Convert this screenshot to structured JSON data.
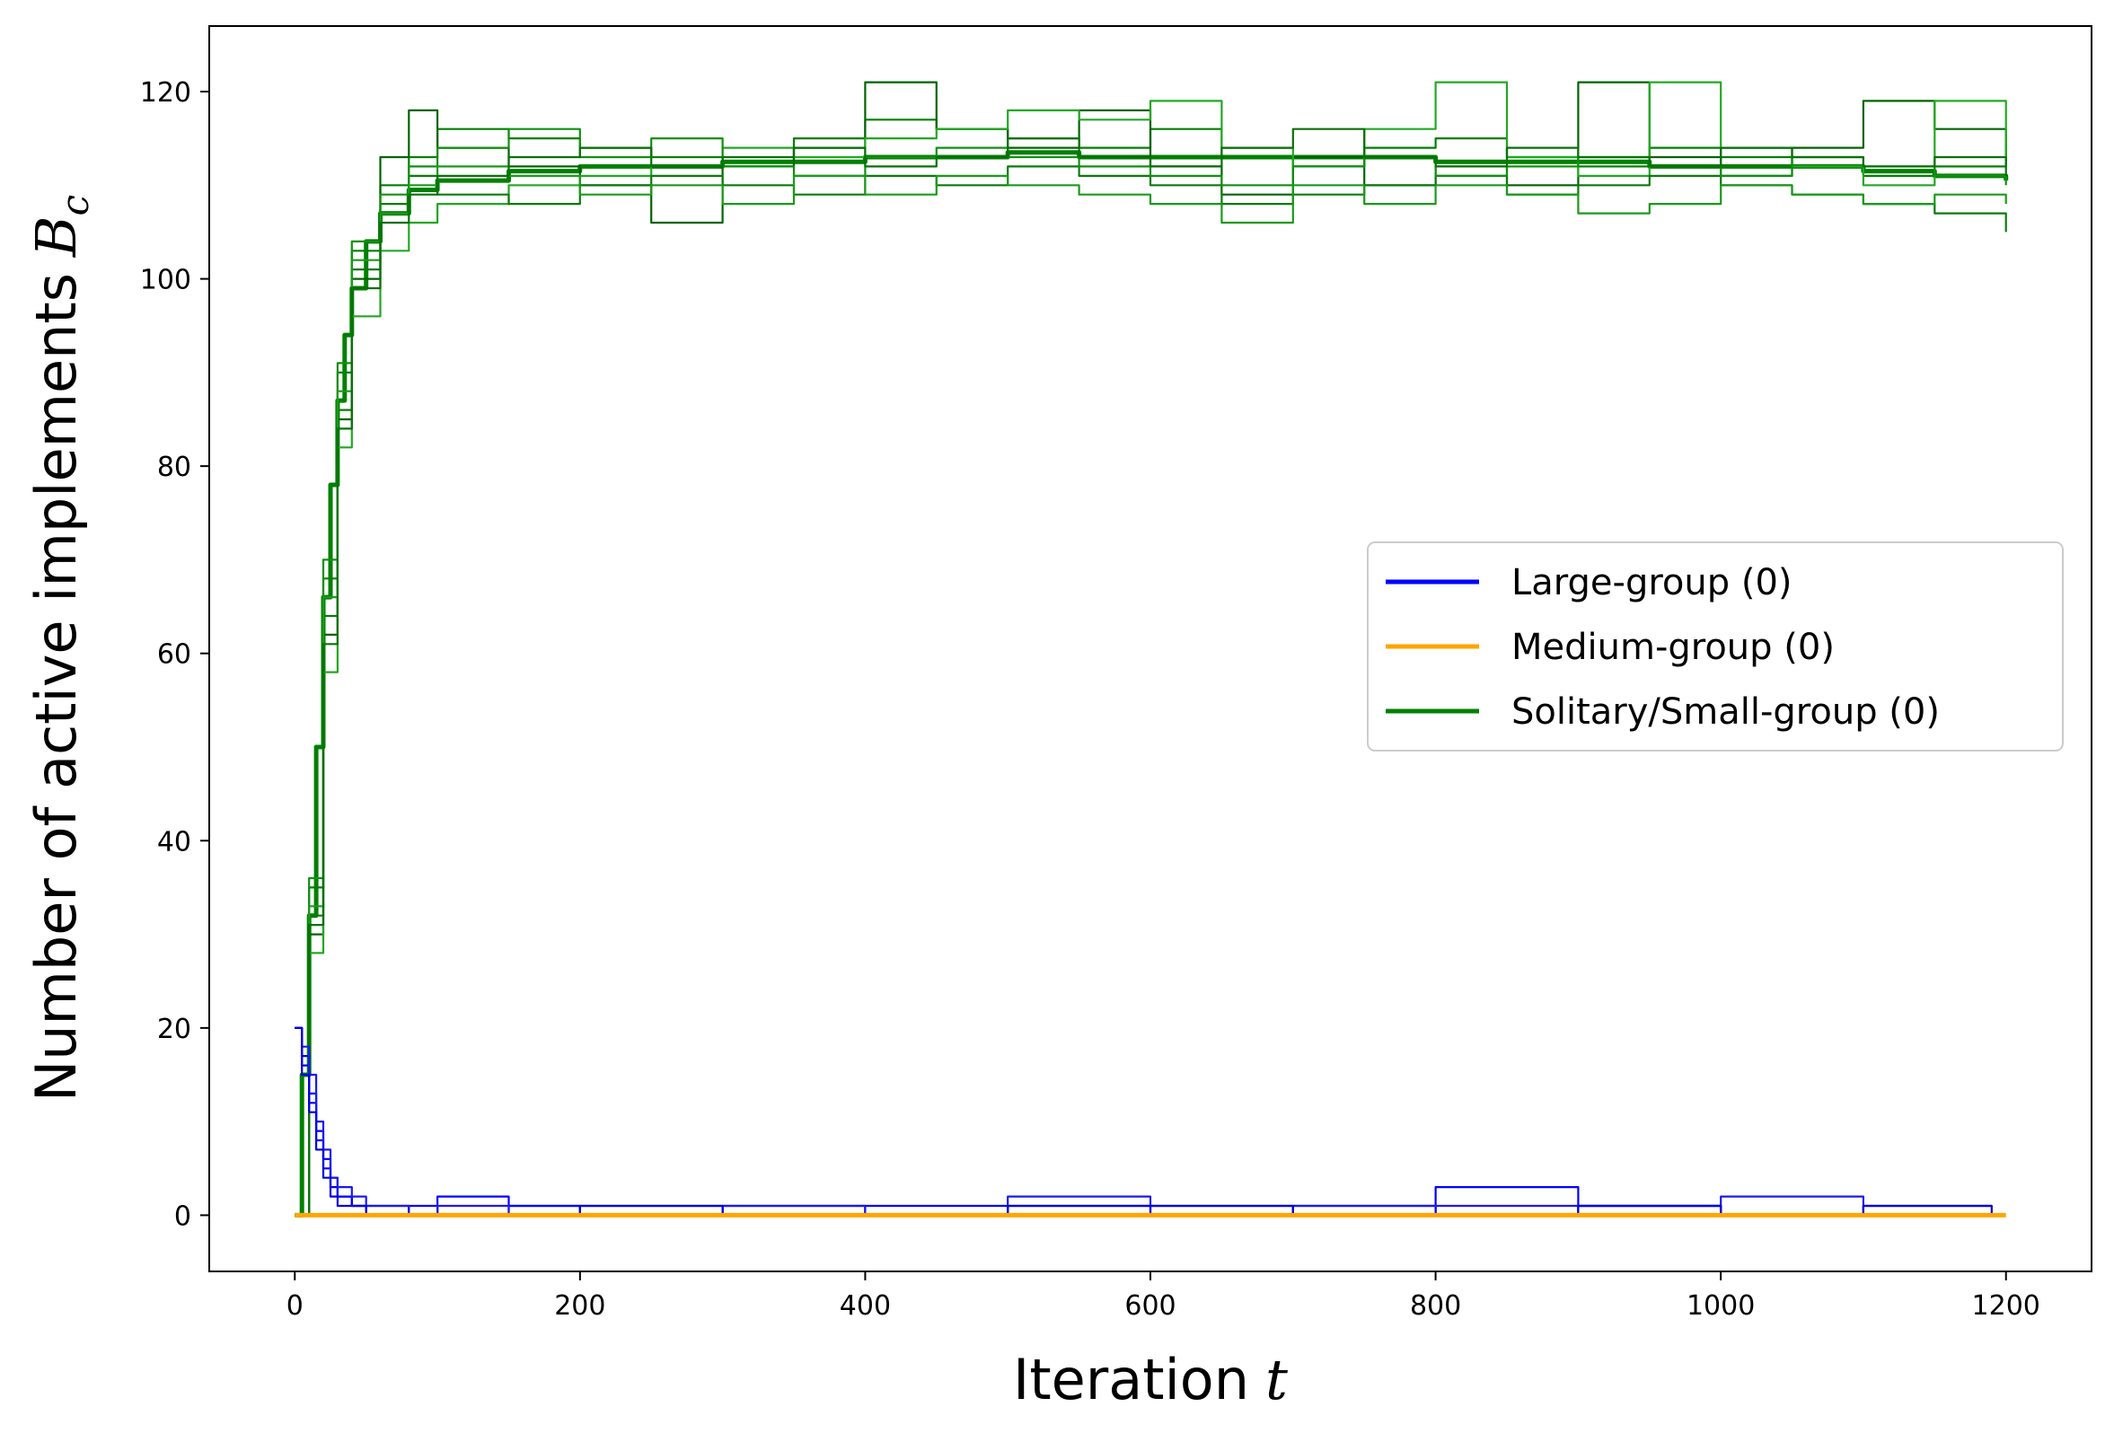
{
  "chart_data": {
    "type": "line",
    "xlabel": "Iteration",
    "xlabel_var": "t",
    "ylabel": "Number of active implements",
    "ylabel_var": "B",
    "ylabel_sub": "c",
    "xlim": [
      -60,
      1260
    ],
    "ylim": [
      -6,
      127
    ],
    "xticks": [
      0,
      200,
      400,
      600,
      800,
      1000,
      1200
    ],
    "yticks": [
      0,
      20,
      40,
      60,
      80,
      100,
      120
    ],
    "grid": false,
    "legend_position": "center-right",
    "legend": [
      {
        "label": "Large-group (0)",
        "color": "#0000ff"
      },
      {
        "label": "Medium-group (0)",
        "color": "#ffa500"
      },
      {
        "label": "Solitary/Small-group (0)",
        "color": "#008000"
      }
    ],
    "series": [
      {
        "group": "Solitary/Small-group",
        "color": "#008000",
        "style": "mean",
        "x": [
          0,
          5,
          10,
          15,
          20,
          25,
          30,
          35,
          40,
          50,
          60,
          80,
          100,
          150,
          200,
          250,
          300,
          350,
          400,
          450,
          500,
          550,
          600,
          650,
          700,
          750,
          800,
          850,
          900,
          950,
          1000,
          1050,
          1100,
          1150,
          1200
        ],
        "y": [
          0,
          15,
          32,
          50,
          66,
          78,
          87,
          94,
          99,
          104,
          107,
          109.5,
          110.5,
          111.5,
          112,
          112,
          112.5,
          112.5,
          113,
          113,
          113.5,
          113,
          113,
          113,
          113,
          113,
          112.5,
          112.5,
          112.5,
          112,
          112,
          112,
          111.5,
          111,
          110.5
        ]
      },
      {
        "group": "Solitary/Small-group",
        "color": "#008000",
        "style": "run",
        "x": [
          0,
          10,
          20,
          30,
          40,
          60,
          80,
          100,
          150,
          200,
          250,
          300,
          350,
          400,
          450,
          500,
          550,
          600,
          650,
          700,
          750,
          800,
          850,
          900,
          950,
          1000,
          1050,
          1100,
          1150,
          1200
        ],
        "y": [
          0,
          35,
          68,
          90,
          103,
          110,
          113,
          116,
          115,
          114,
          113,
          112,
          115,
          117,
          116,
          115,
          114,
          116,
          113,
          112,
          114,
          115,
          113,
          112,
          114,
          113,
          112,
          111,
          112,
          115
        ]
      },
      {
        "group": "Solitary/Small-group",
        "color": "#006400",
        "style": "run",
        "x": [
          0,
          10,
          20,
          30,
          40,
          60,
          80,
          100,
          150,
          200,
          250,
          300,
          350,
          400,
          450,
          500,
          550,
          600,
          650,
          700,
          750,
          800,
          850,
          900,
          950,
          1000,
          1050,
          1100,
          1150,
          1200
        ],
        "y": [
          0,
          30,
          62,
          85,
          100,
          113,
          118,
          114,
          112,
          110,
          106,
          112,
          114,
          121,
          116,
          114,
          118,
          112,
          109,
          113,
          110,
          112,
          110,
          121,
          113,
          111,
          114,
          119,
          116,
          112
        ]
      },
      {
        "group": "Solitary/Small-group",
        "color": "#22a822",
        "style": "run",
        "x": [
          0,
          10,
          20,
          30,
          40,
          60,
          80,
          100,
          150,
          200,
          250,
          300,
          350,
          400,
          450,
          500,
          550,
          600,
          650,
          700,
          750,
          800,
          850,
          900,
          950,
          1000,
          1050,
          1100,
          1150,
          1200
        ],
        "y": [
          0,
          28,
          58,
          82,
          96,
          103,
          106,
          108,
          110,
          111,
          112,
          114,
          113,
          115,
          116,
          118,
          117,
          119,
          114,
          112,
          116,
          121,
          113,
          111,
          121,
          114,
          112,
          110,
          119,
          112
        ]
      },
      {
        "group": "Solitary/Small-group",
        "color": "#0b7a0b",
        "style": "run",
        "x": [
          0,
          10,
          20,
          30,
          40,
          60,
          80,
          100,
          150,
          200,
          250,
          300,
          350,
          400,
          450,
          500,
          550,
          600,
          650,
          700,
          750,
          800,
          850,
          900,
          950,
          1000,
          1050,
          1100,
          1150,
          1200
        ],
        "y": [
          0,
          32,
          64,
          86,
          101,
          108,
          111,
          109,
          108,
          110,
          111,
          110,
          109,
          111,
          110,
          112,
          111,
          110,
          108,
          109,
          110,
          111,
          109,
          110,
          111,
          110,
          109,
          108,
          107,
          105
        ]
      },
      {
        "group": "Solitary/Small-group",
        "color": "#109010",
        "style": "run",
        "x": [
          0,
          10,
          20,
          30,
          40,
          60,
          80,
          100,
          150,
          200,
          250,
          300,
          350,
          400,
          450,
          500,
          550,
          600,
          650,
          700,
          750,
          800,
          850,
          900,
          950,
          1000,
          1050,
          1100,
          1150,
          1200
        ],
        "y": [
          0,
          36,
          70,
          91,
          104,
          109,
          112,
          114,
          116,
          113,
          115,
          112,
          111,
          113,
          114,
          113,
          112,
          111,
          110,
          112,
          113,
          111,
          112,
          113,
          112,
          111,
          113,
          112,
          111,
          110
        ]
      },
      {
        "group": "Solitary/Small-group",
        "color": "#1a9a1a",
        "style": "run",
        "x": [
          0,
          10,
          20,
          30,
          40,
          60,
          80,
          100,
          150,
          200,
          250,
          300,
          350,
          400,
          450,
          500,
          550,
          600,
          650,
          700,
          750,
          800,
          850,
          900,
          950,
          1000,
          1050,
          1100,
          1150,
          1200
        ],
        "y": [
          0,
          33,
          66,
          88,
          102,
          107,
          110,
          112,
          111,
          109,
          110,
          108,
          111,
          109,
          111,
          110,
          109,
          108,
          106,
          110,
          108,
          110,
          109,
          107,
          108,
          110,
          109,
          108,
          109,
          108
        ]
      },
      {
        "group": "Solitary/Small-group",
        "color": "#087008",
        "style": "run",
        "x": [
          0,
          10,
          20,
          30,
          40,
          60,
          80,
          100,
          150,
          200,
          250,
          300,
          350,
          400,
          450,
          500,
          550,
          600,
          650,
          700,
          750,
          800,
          850,
          900,
          950,
          1000,
          1050,
          1100,
          1150,
          1200
        ],
        "y": [
          0,
          31,
          61,
          84,
          99,
          106,
          109,
          111,
          113,
          114,
          112,
          113,
          114,
          112,
          113,
          115,
          113,
          112,
          114,
          116,
          113,
          112,
          114,
          113,
          112,
          114,
          113,
          112,
          113,
          111
        ]
      },
      {
        "group": "Large-group",
        "color": "#0000ff",
        "style": "run",
        "x": [
          0,
          5,
          10,
          15,
          20,
          25,
          30,
          40,
          50,
          80,
          100,
          150,
          200,
          300,
          400,
          500,
          600,
          700,
          800,
          900,
          1000,
          1100,
          1190
        ],
        "y": [
          20,
          17,
          12,
          8,
          5,
          3,
          2,
          1,
          1,
          0,
          2,
          1,
          0,
          1,
          0,
          1,
          0,
          1,
          0,
          1,
          0,
          1,
          1
        ]
      },
      {
        "group": "Large-group",
        "color": "#0000ff",
        "style": "run",
        "x": [
          0,
          5,
          10,
          15,
          20,
          25,
          30,
          40,
          50,
          80,
          100,
          150,
          200,
          300,
          400,
          500,
          600,
          700,
          800,
          900,
          1000,
          1100,
          1190
        ],
        "y": [
          20,
          16,
          13,
          9,
          6,
          4,
          2,
          1,
          0,
          1,
          0,
          1,
          1,
          0,
          1,
          0,
          1,
          0,
          3,
          1,
          0,
          0,
          0
        ]
      },
      {
        "group": "Large-group",
        "color": "#1a1aee",
        "style": "run",
        "x": [
          0,
          5,
          10,
          15,
          20,
          25,
          30,
          40,
          50,
          80,
          100,
          150,
          200,
          300,
          400,
          500,
          600,
          700,
          800,
          900,
          1000,
          1100,
          1190
        ],
        "y": [
          20,
          18,
          15,
          10,
          7,
          4,
          3,
          2,
          1,
          0,
          1,
          0,
          0,
          1,
          0,
          2,
          0,
          1,
          1,
          0,
          2,
          0,
          0
        ]
      },
      {
        "group": "Large-group",
        "color": "#0000dd",
        "style": "run",
        "x": [
          0,
          5,
          10,
          15,
          20,
          25,
          30,
          40,
          50,
          80,
          100,
          150,
          200,
          300,
          400,
          500,
          600,
          700,
          800,
          900,
          1000,
          1100,
          1190
        ],
        "y": [
          20,
          15,
          11,
          7,
          4,
          2,
          1,
          1,
          0,
          0,
          0,
          0,
          1,
          0,
          0,
          1,
          1,
          0,
          0,
          1,
          0,
          1,
          0
        ]
      },
      {
        "group": "Medium-group",
        "color": "#ffa500",
        "style": "mean",
        "x": [
          0,
          1200
        ],
        "y": [
          0,
          0
        ]
      }
    ]
  }
}
